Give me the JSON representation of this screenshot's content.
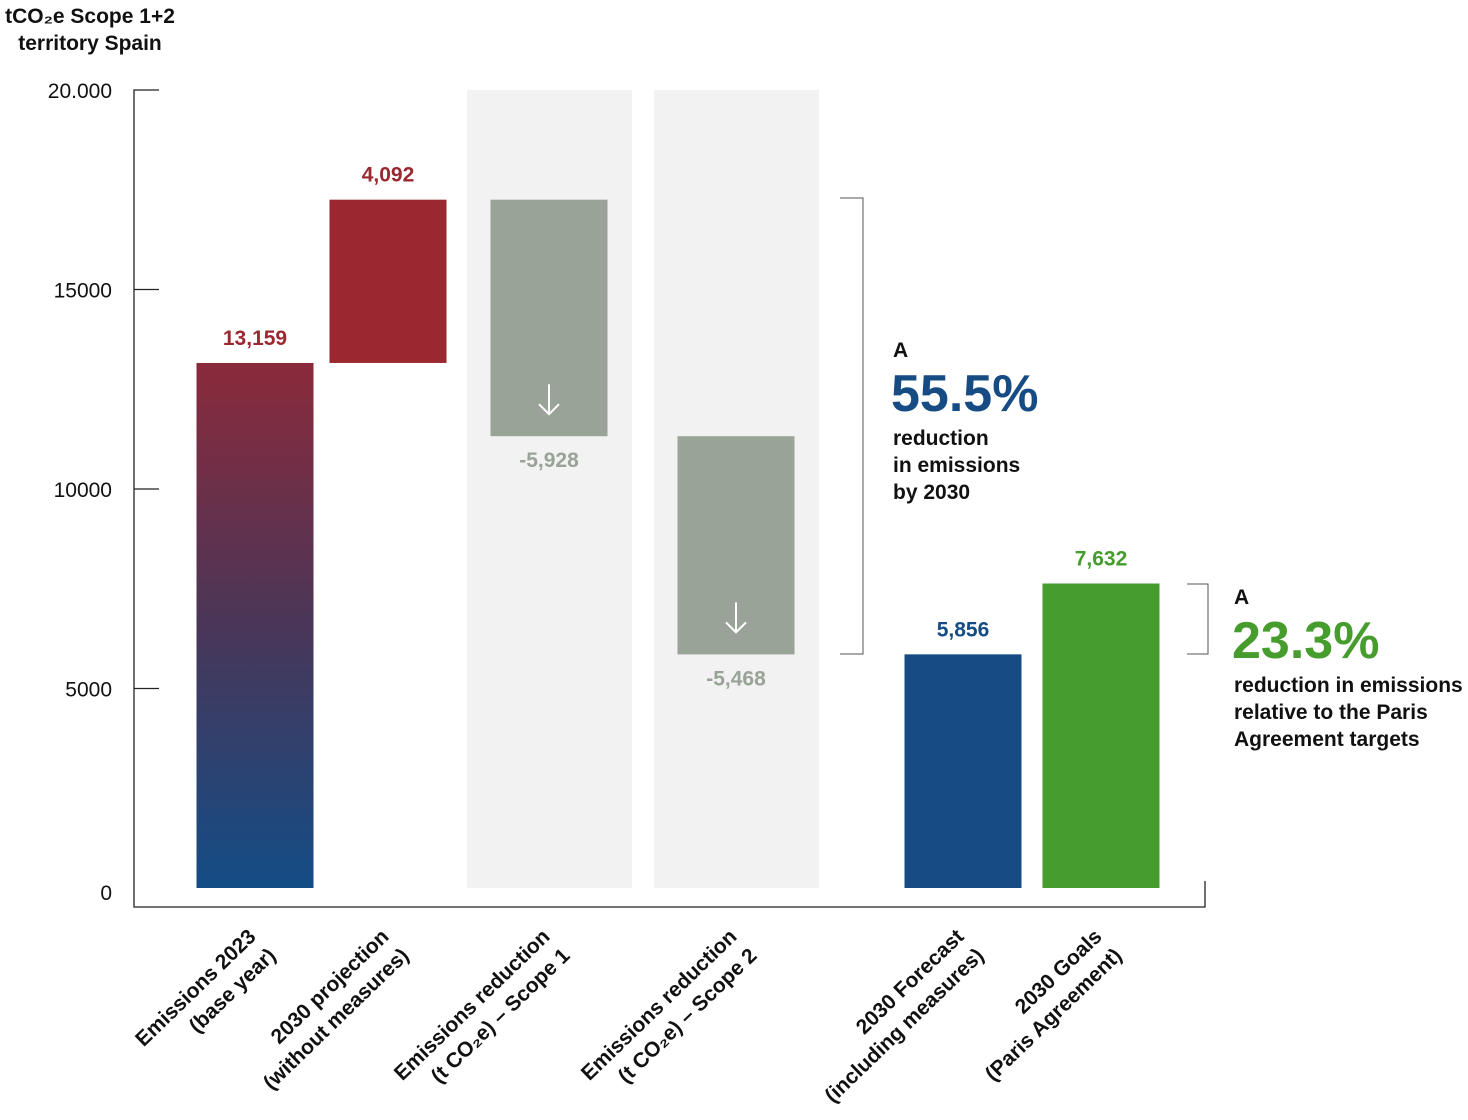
{
  "chart_data": {
    "type": "bar",
    "subtype": "waterfall",
    "title_lines": [
      "tCO₂e Scope 1+2",
      "territory Spain"
    ],
    "ylim": [
      0,
      20000
    ],
    "yticks": [
      0,
      5000,
      10000,
      15000,
      20000
    ],
    "ytick_labels": [
      "0",
      "5000",
      "10000",
      "15000",
      "20.000"
    ],
    "grid": false,
    "categories": [
      {
        "lines": [
          "Emissions 2023",
          "(base year)"
        ],
        "value": 13159,
        "label": "13,159",
        "kind": "total",
        "color": "gradient",
        "shaded": false
      },
      {
        "lines": [
          "2030 projection",
          "(without measures)"
        ],
        "value": 4092,
        "label": "4,092",
        "kind": "increase",
        "color": "#9b2830",
        "shaded": false
      },
      {
        "lines": [
          "Emissions reduction",
          "(t CO₂e) – Scope 1"
        ],
        "value": -5928,
        "label": "-5,928",
        "kind": "decrease",
        "color": "#9aa397",
        "shaded": true
      },
      {
        "lines": [
          "Emissions reduction",
          "(t CO₂e) – Scope 2"
        ],
        "value": -5468,
        "label": "-5,468",
        "kind": "decrease",
        "color": "#9aa397",
        "shaded": true
      },
      {
        "lines": [
          "2030 Forecast",
          "(including measures)"
        ],
        "value": 5856,
        "label": "5,856",
        "kind": "total",
        "color": "#164c83",
        "shaded": false
      },
      {
        "lines": [
          "2030 Goals",
          "(Paris Agreement)"
        ],
        "value": 7632,
        "label": "7,632",
        "kind": "total",
        "color": "#469c2c",
        "shaded": false
      }
    ],
    "label_colors": [
      "#9b2830",
      "#9b2830",
      "#9aa397",
      "#9aa397",
      "#164c83",
      "#469c2c"
    ],
    "gradient": {
      "top": "#8b2a3b",
      "middle": "#4a3658",
      "bottom": "#134d86"
    },
    "annotations": [
      {
        "prefix": "A",
        "value": "55.5%",
        "lines": [
          "reduction",
          "in emissions",
          "by 2030"
        ],
        "color": "#164c83"
      },
      {
        "prefix": "A",
        "value": "23.3%",
        "lines": [
          "reduction in emissions",
          "relative to the Paris",
          "Agreement targets"
        ],
        "color": "#469c2c"
      }
    ],
    "icons": [
      "arrow-down-icon"
    ]
  }
}
